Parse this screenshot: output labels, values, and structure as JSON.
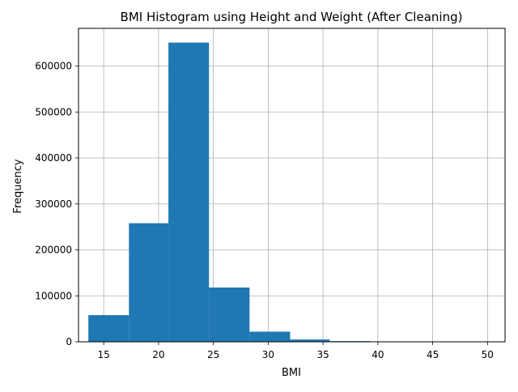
{
  "chart_data": {
    "type": "bar",
    "title": "BMI Histogram using Height and Weight (After Cleaning)",
    "xlabel": "BMI",
    "ylabel": "Frequency",
    "xlim": [
      12.7,
      51.6
    ],
    "ylim": [
      0,
      682000
    ],
    "xticks": [
      15,
      20,
      25,
      30,
      35,
      40,
      45,
      50
    ],
    "yticks": [
      0,
      100000,
      200000,
      300000,
      400000,
      500000,
      600000
    ],
    "grid": true,
    "bar_color": "#1f77b4",
    "bins": [
      {
        "x0": 13.6,
        "x1": 17.3,
        "value": 58000
      },
      {
        "x0": 17.3,
        "x1": 20.9,
        "value": 258000
      },
      {
        "x0": 20.9,
        "x1": 24.6,
        "value": 651000
      },
      {
        "x0": 24.6,
        "x1": 28.3,
        "value": 118000
      },
      {
        "x0": 28.3,
        "x1": 32.0,
        "value": 22000
      },
      {
        "x0": 32.0,
        "x1": 35.6,
        "value": 5000
      },
      {
        "x0": 35.6,
        "x1": 39.3,
        "value": 1500
      },
      {
        "x0": 39.3,
        "x1": 43.0,
        "value": 800
      },
      {
        "x0": 43.0,
        "x1": 46.6,
        "value": 400
      },
      {
        "x0": 46.6,
        "x1": 50.3,
        "value": 150
      }
    ]
  }
}
